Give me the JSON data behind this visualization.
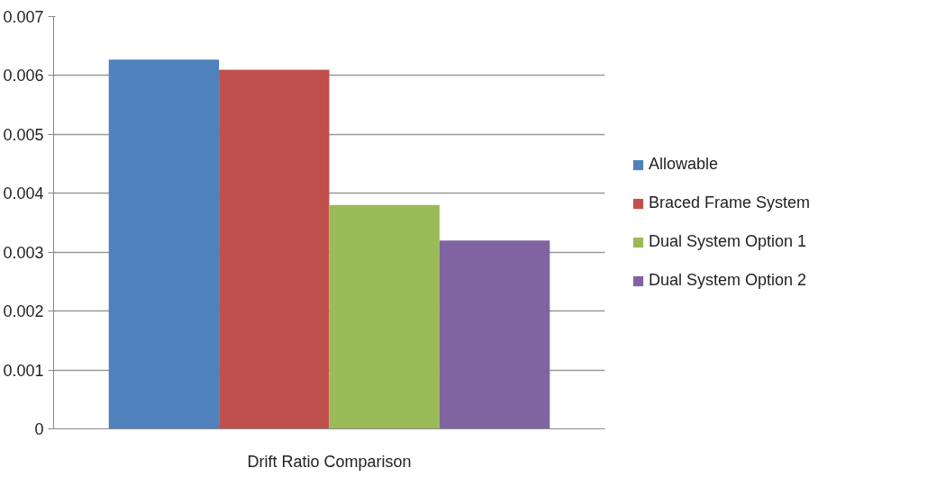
{
  "chart_data": {
    "type": "bar",
    "categories": [
      "Drift Ratio Comparison"
    ],
    "series": [
      {
        "name": "Allowable",
        "color": "#4f81bd",
        "values": [
          0.00627
        ]
      },
      {
        "name": "Braced Frame System",
        "color": "#c0504d",
        "values": [
          0.0061
        ]
      },
      {
        "name": "Dual System Option 1",
        "color": "#9bbb59",
        "values": [
          0.0038
        ]
      },
      {
        "name": "Dual System Option 2",
        "color": "#8064a2",
        "values": [
          0.0032
        ]
      }
    ],
    "ylim": [
      0,
      0.007
    ],
    "yticks": [
      {
        "value": 0,
        "label": "0"
      },
      0.001,
      0.002,
      0.003,
      0.004,
      0.005,
      0.006,
      0.007
    ],
    "grid": "y",
    "legend": "right"
  }
}
